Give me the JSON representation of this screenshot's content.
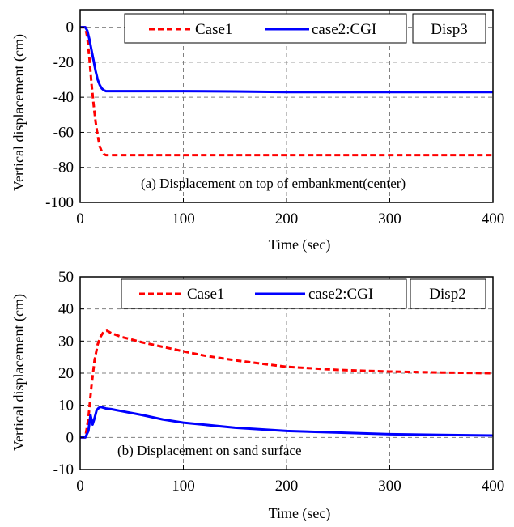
{
  "chart_data": [
    {
      "type": "line",
      "caption": "(a) Displacement on top of embankment(center)",
      "tag": "Disp3",
      "xlabel": "Time   (sec)",
      "ylabel": "Vertical displacement (cm)",
      "xlim": [
        0,
        400
      ],
      "ylim": [
        -100,
        10
      ],
      "xticks": [
        0,
        100,
        200,
        300,
        400
      ],
      "yticks": [
        0,
        -20,
        -40,
        -60,
        -80,
        -100
      ],
      "grid": true,
      "legend_position": "top",
      "series": [
        {
          "name": "Case1",
          "color": "#ff0000",
          "style": "dashed",
          "x": [
            0,
            5,
            7,
            9,
            11,
            13,
            15,
            17,
            19,
            21,
            23,
            25,
            30,
            50,
            100,
            150,
            200,
            250,
            300,
            350,
            400
          ],
          "y": [
            0,
            0,
            -6,
            -18,
            -32,
            -44,
            -54,
            -62,
            -68,
            -71,
            -72.5,
            -73,
            -73,
            -73,
            -73,
            -73,
            -73,
            -73,
            -73,
            -73,
            -73
          ]
        },
        {
          "name": "case2:CGI",
          "color": "#0000ff",
          "style": "solid",
          "x": [
            0,
            5,
            7,
            9,
            11,
            13,
            15,
            17,
            19,
            21,
            23,
            25,
            30,
            50,
            100,
            150,
            200,
            250,
            300,
            350,
            400
          ],
          "y": [
            0,
            0,
            -2,
            -7,
            -13,
            -19,
            -25,
            -30,
            -33,
            -35,
            -36,
            -36.5,
            -36.5,
            -36.5,
            -36.5,
            -36.7,
            -37,
            -37,
            -37,
            -37,
            -37
          ]
        }
      ]
    },
    {
      "type": "line",
      "caption": "(b) Displacement on sand surface",
      "tag": "Disp2",
      "xlabel": "Time   (sec)",
      "ylabel": "Vertical displacement (cm)",
      "xlim": [
        0,
        400
      ],
      "ylim": [
        -10,
        50
      ],
      "xticks": [
        0,
        100,
        200,
        300,
        400
      ],
      "yticks": [
        50,
        40,
        30,
        20,
        10,
        0,
        -10
      ],
      "grid": true,
      "legend_position": "top",
      "series": [
        {
          "name": "Case1",
          "color": "#ff0000",
          "style": "dashed",
          "x": [
            0,
            5,
            8,
            11,
            14,
            17,
            20,
            23,
            26,
            30,
            40,
            50,
            60,
            80,
            100,
            120,
            150,
            200,
            250,
            300,
            350,
            400
          ],
          "y": [
            0,
            0,
            6,
            16,
            24,
            29,
            31.5,
            33,
            33.2,
            32.5,
            31.3,
            30.5,
            29.6,
            28.2,
            26.8,
            25.5,
            24,
            22,
            21,
            20.5,
            20.2,
            20
          ]
        },
        {
          "name": "case2:CGI",
          "color": "#0000ff",
          "style": "solid",
          "x": [
            0,
            5,
            8,
            10,
            12,
            14,
            16,
            18,
            20,
            22,
            25,
            30,
            40,
            60,
            80,
            100,
            150,
            200,
            250,
            300,
            350,
            400
          ],
          "y": [
            0,
            0,
            2,
            7,
            4,
            6,
            8.5,
            9.2,
            9.5,
            9.3,
            9,
            8.8,
            8.2,
            7,
            5.6,
            4.6,
            3,
            2,
            1.5,
            1,
            0.8,
            0.6
          ]
        }
      ]
    }
  ]
}
